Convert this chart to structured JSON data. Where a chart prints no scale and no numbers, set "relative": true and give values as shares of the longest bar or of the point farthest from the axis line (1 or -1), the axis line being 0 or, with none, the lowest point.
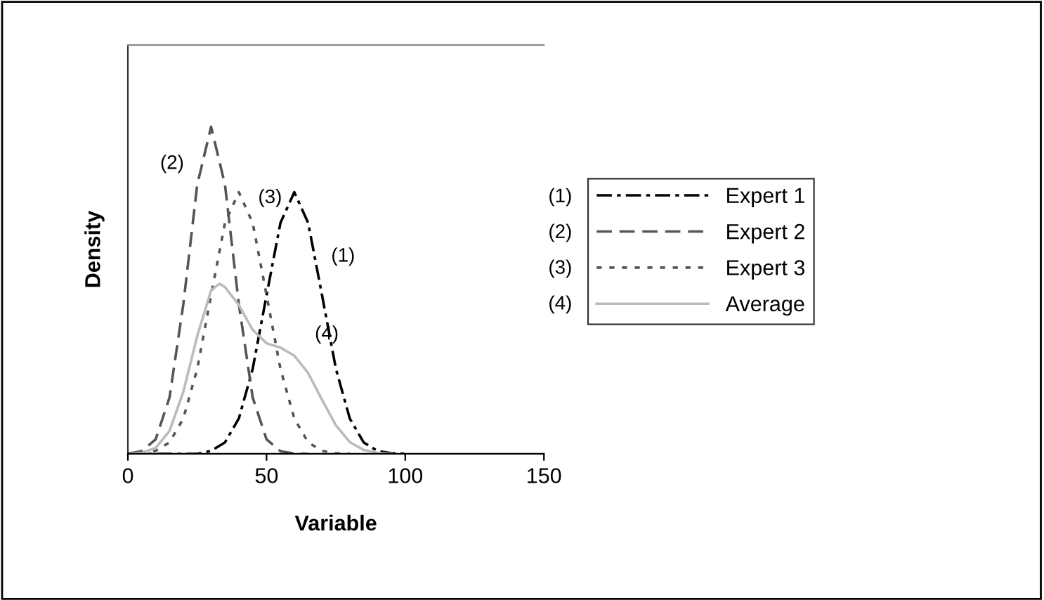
{
  "chart_data": {
    "type": "line",
    "relative": true,
    "xlabel": "Variable",
    "ylabel": "Density",
    "xlim": [
      0,
      150
    ],
    "xticks": [
      0,
      50,
      100,
      150
    ],
    "legend": "right",
    "grid": false,
    "marker": "none",
    "series": [
      {
        "name": "Expert 1",
        "color": "#000000",
        "line_style": "dashdot",
        "x": [
          0,
          25,
          30,
          35,
          40,
          45,
          50,
          55,
          60,
          65,
          70,
          75,
          80,
          85,
          90,
          95,
          100
        ],
        "values": [
          0,
          0,
          0.009,
          0.035,
          0.108,
          0.26,
          0.485,
          0.706,
          0.8,
          0.706,
          0.485,
          0.26,
          0.108,
          0.035,
          0.009,
          0.002,
          0
        ]
      },
      {
        "name": "Expert 2",
        "color": "#555555",
        "line_style": "dashed",
        "x": [
          0,
          5,
          10,
          15,
          20,
          25,
          30,
          35,
          40,
          45,
          50,
          55,
          60,
          65
        ],
        "values": [
          0.001,
          0.008,
          0.044,
          0.172,
          0.458,
          0.823,
          1,
          0.823,
          0.458,
          0.172,
          0.044,
          0.008,
          0.001,
          0
        ]
      },
      {
        "name": "Expert 3",
        "color": "#555555",
        "line_style": "dotted",
        "x": [
          0,
          5,
          10,
          15,
          20,
          25,
          30,
          35,
          40,
          45,
          50,
          55,
          60,
          65,
          70,
          75,
          80
        ],
        "values": [
          0,
          0.002,
          0.009,
          0.035,
          0.108,
          0.26,
          0.485,
          0.706,
          0.8,
          0.706,
          0.485,
          0.26,
          0.108,
          0.035,
          0.009,
          0.002,
          0
        ]
      },
      {
        "name": "Average",
        "color": "#bbbbbb",
        "line_style": "solid",
        "x": [
          0,
          5,
          10,
          15,
          20,
          25,
          30,
          33,
          35,
          40,
          45,
          50,
          55,
          60,
          65,
          70,
          75,
          80,
          85,
          90,
          95
        ],
        "values": [
          0,
          0.003,
          0.018,
          0.07,
          0.19,
          0.36,
          0.5,
          0.52,
          0.51,
          0.455,
          0.379,
          0.338,
          0.325,
          0.3,
          0.247,
          0.165,
          0.087,
          0.036,
          0.012,
          0.003,
          0
        ]
      }
    ],
    "annotations": [
      "(1)",
      "(2)",
      "(3)",
      "(4)",
      "(1)",
      "(2)",
      "(3)",
      "(4)"
    ]
  }
}
